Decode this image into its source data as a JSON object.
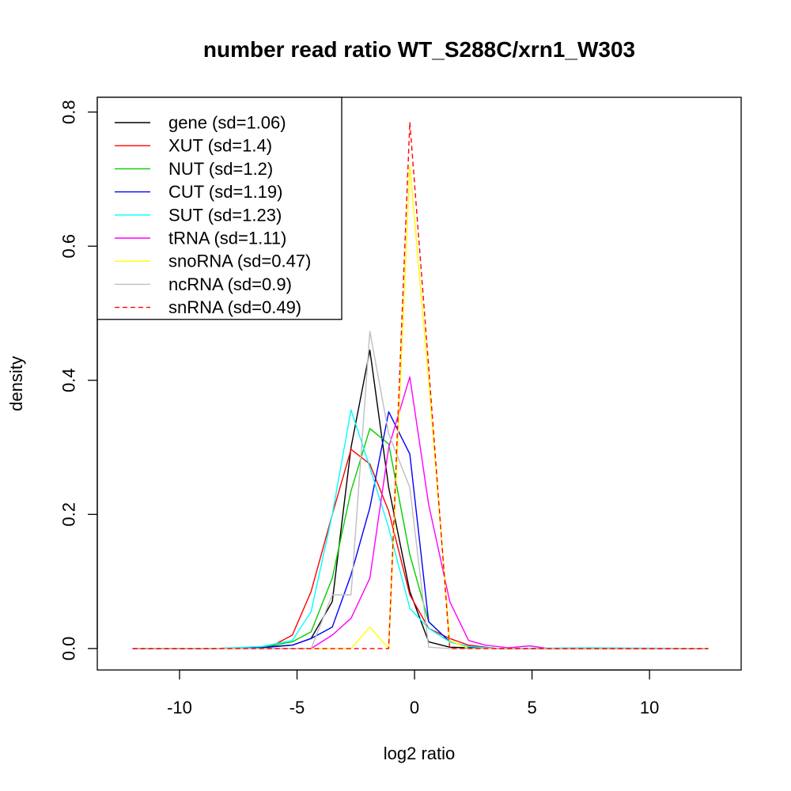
{
  "chart_data": {
    "type": "line",
    "title": "number read ratio WT_S288C/xrn1_W303",
    "xlabel": "log2 ratio",
    "ylabel": "density",
    "xlim": [
      -13.5,
      13.9
    ],
    "ylim": [
      -0.032,
      0.822
    ],
    "xticks": [
      -10,
      -5,
      0,
      5,
      10
    ],
    "xtick_labels": [
      "-10",
      "-5",
      "0",
      "5",
      "10"
    ],
    "yticks": [
      0.0,
      0.2,
      0.4,
      0.6,
      0.8
    ],
    "ytick_labels": [
      "0.0",
      "0.2",
      "0.4",
      "0.6",
      "0.8"
    ],
    "grid": false,
    "legend_position": "top-left",
    "series": [
      {
        "name": "gene (sd=1.06)",
        "color": "#000000",
        "dash": "solid",
        "x": [
          -12,
          -8.5,
          -6.5,
          -5.2,
          -4.4,
          -3.5,
          -2.7,
          -1.9,
          -1.1,
          -0.2,
          0.6,
          1.5,
          2.3,
          3.5,
          12.5
        ],
        "y": [
          0,
          0,
          0.002,
          0.005,
          0.015,
          0.07,
          0.3,
          0.445,
          0.24,
          0.085,
          0.01,
          0.002,
          0.001,
          0,
          0
        ]
      },
      {
        "name": "XUT (sd=1.4)",
        "color": "#ff0000",
        "dash": "solid",
        "x": [
          -12,
          -8.5,
          -6.5,
          -6.0,
          -5.2,
          -4.4,
          -3.5,
          -2.7,
          -1.9,
          -1.1,
          -0.2,
          0.6,
          1.5,
          2.3,
          3.5,
          12.5
        ],
        "y": [
          0,
          0,
          0.002,
          0.005,
          0.02,
          0.085,
          0.2,
          0.297,
          0.275,
          0.205,
          0.08,
          0.03,
          0.015,
          0.005,
          0,
          0
        ]
      },
      {
        "name": "NUT (sd=1.2)",
        "color": "#00cd00",
        "dash": "solid",
        "x": [
          -12,
          -8.5,
          -6.5,
          -5.2,
          -4.4,
          -3.5,
          -2.7,
          -1.9,
          -1.1,
          -0.2,
          0.6,
          1.5,
          2.3,
          3.5,
          12.5
        ],
        "y": [
          0,
          0,
          0.002,
          0.01,
          0.025,
          0.105,
          0.235,
          0.328,
          0.305,
          0.14,
          0.04,
          0.01,
          0.003,
          0,
          0
        ]
      },
      {
        "name": "CUT (sd=1.19)",
        "color": "#0000ff",
        "dash": "solid",
        "x": [
          -12,
          -8.5,
          -6.5,
          -5.2,
          -4.4,
          -3.5,
          -2.7,
          -1.9,
          -1.1,
          -0.2,
          0.6,
          1.5,
          2.3,
          3.5,
          12.5
        ],
        "y": [
          0,
          0,
          0.001,
          0.005,
          0.015,
          0.032,
          0.11,
          0.21,
          0.353,
          0.29,
          0.04,
          0.01,
          0.003,
          0,
          0
        ]
      },
      {
        "name": "SUT (sd=1.23)",
        "color": "#00ffff",
        "dash": "solid",
        "x": [
          -12,
          -8.5,
          -6.5,
          -5.2,
          -4.4,
          -3.5,
          -2.7,
          -1.9,
          -1.1,
          -0.2,
          0.6,
          1.5,
          2.3,
          3.5,
          7.5,
          12.5
        ],
        "y": [
          0,
          0,
          0.003,
          0.012,
          0.055,
          0.2,
          0.356,
          0.27,
          0.18,
          0.06,
          0.03,
          0.01,
          0.003,
          0,
          0.001,
          0
        ]
      },
      {
        "name": "tRNA (sd=1.11)",
        "color": "#ff00ff",
        "dash": "solid",
        "x": [
          -12,
          -4.4,
          -3.5,
          -2.7,
          -1.9,
          -1.1,
          -0.2,
          0.6,
          1.5,
          2.3,
          3.0,
          4.0,
          4.9,
          5.7,
          12.5
        ],
        "y": [
          0,
          0,
          0.02,
          0.045,
          0.105,
          0.3,
          0.405,
          0.215,
          0.07,
          0.012,
          0.005,
          0.001,
          0.004,
          0,
          0
        ]
      },
      {
        "name": "snoRNA (sd=0.47)",
        "color": "#ffff00",
        "dash": "solid",
        "x": [
          -12,
          -2.7,
          -1.9,
          -1.1,
          -0.2,
          0.6,
          1.5,
          2.3,
          12.5
        ],
        "y": [
          0,
          0,
          0.032,
          0,
          0.72,
          0.4,
          0.012,
          0,
          0
        ]
      },
      {
        "name": "ncRNA (sd=0.9)",
        "color": "#bebebe",
        "dash": "solid",
        "x": [
          -12,
          -4.4,
          -3.5,
          -2.7,
          -1.9,
          -1.1,
          -0.2,
          0.6,
          1.5,
          12.5
        ],
        "y": [
          0,
          0,
          0.08,
          0.08,
          0.473,
          0.32,
          0.24,
          0.002,
          0,
          0
        ]
      },
      {
        "name": "snRNA (sd=0.49)",
        "color": "#ff0000",
        "dash": "dashed",
        "x": [
          -12,
          -1.1,
          -0.2,
          0.6,
          1.5,
          12.5
        ],
        "y": [
          0,
          0,
          0.785,
          0.42,
          0,
          0
        ]
      }
    ]
  }
}
